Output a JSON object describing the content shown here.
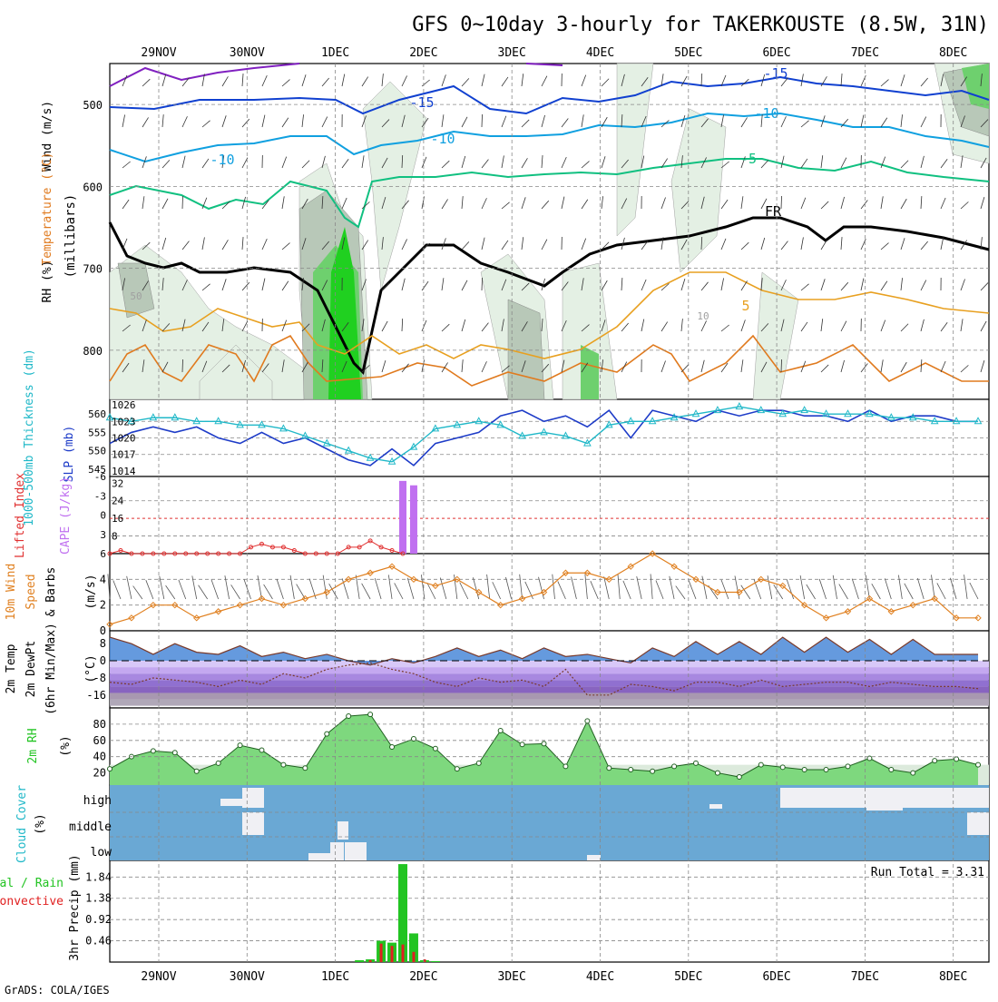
{
  "title": "GFS 0~10day 3-hourly for TAKERKOUSTE (8.5W, 31N)",
  "credit": "GrADS: COLA/IGES",
  "days": [
    "29NOV",
    "30NOV",
    "1DEC",
    "2DEC",
    "3DEC",
    "4DEC",
    "5DEC",
    "6DEC",
    "7DEC",
    "8DEC"
  ],
  "colors": {
    "temp_warm": "#e07a1e",
    "temp_yellow": "#e8a020",
    "freezing": "#000000",
    "temp_cold_green": "#10c080",
    "temp_cold_cyan": "#10a0e0",
    "temp_cold_blue": "#1040d0",
    "temp_cold_purple": "#8020c0",
    "rh_green": "#20d020",
    "slp": "#1e3cc8",
    "thickness": "#20b8c8",
    "cape": "#c070f0",
    "lifted_index": "#e03030",
    "wind10m": "#e08020",
    "cloud_sky": "#6aa8d4",
    "cloud_fill": "#f0f0f4",
    "precip_total": "#22c422",
    "precip_conv": "#e02020"
  },
  "panels": {
    "upper": {
      "label_wind": "Wind (m/s)",
      "label_temp": "Temperature (°C)",
      "label_rh": "RH (%)",
      "label_mb": "(millibars)",
      "yticks": [
        "500",
        "600",
        "700",
        "800"
      ],
      "contour_labels": [
        "-15",
        "-15",
        "-10",
        "-10",
        "-10",
        "-5",
        "FR",
        "5",
        "50",
        "10"
      ]
    },
    "slp": {
      "label_thickness": "1000-500mb Thickness (dm)",
      "label_slp": "SLP (mb)",
      "left_ticks": [
        "560",
        "555",
        "550",
        "545"
      ],
      "right_ticks": [
        "1026",
        "1023",
        "1020",
        "1017",
        "1014"
      ]
    },
    "cape": {
      "label_li": "Lifted Index",
      "label_cape": "CAPE (J/kg)",
      "left_ticks": [
        "-6",
        "-3",
        "0",
        "3",
        "6"
      ],
      "right_ticks": [
        "32",
        "24",
        "16",
        "8"
      ]
    },
    "wind10m": {
      "label_a": "10m Wind",
      "label_b": "Speed",
      "label_c": "& Barbs",
      "label_unit": "(m/s)",
      "yticks": [
        "4",
        "2",
        "0"
      ]
    },
    "temp2m": {
      "label_a": "2m Temp",
      "label_b": "2m DewPt",
      "label_c": "(6hr Min/Max)",
      "label_unit": "(°C)",
      "yticks": [
        "8",
        "0",
        "-8",
        "-16"
      ]
    },
    "rh2m": {
      "label_a": "2m RH",
      "label_unit": "(%)",
      "yticks": [
        "80",
        "60",
        "40",
        "20"
      ]
    },
    "cloud": {
      "label_a": "Cloud Cover",
      "label_unit": "(%)",
      "levels": [
        "high",
        "middle",
        "low"
      ]
    },
    "precip": {
      "label_a": "Total / Rain",
      "label_b": "Convective",
      "label_unit": "3hr Precip (mm)",
      "yticks": [
        "1.84",
        "1.38",
        "0.92",
        "0.46"
      ],
      "run_total": "Run Total = 3.31"
    }
  },
  "chart_data": [
    {
      "type": "line",
      "name": "SLP",
      "x_unit": "forecast hour (3-hourly)",
      "x": [
        0,
        6,
        12,
        18,
        24,
        30,
        36,
        42,
        48,
        54,
        60,
        66,
        72,
        78,
        84,
        90,
        96,
        102,
        108,
        114,
        120,
        126,
        132,
        138,
        144,
        150,
        156,
        162,
        168,
        174,
        180,
        186,
        192,
        198,
        204,
        210,
        216,
        222,
        228,
        234,
        240
      ],
      "values": [
        1019,
        1021,
        1022,
        1021,
        1022,
        1020,
        1019,
        1021,
        1019,
        1020,
        1018,
        1016,
        1015,
        1018,
        1015,
        1019,
        1020,
        1021,
        1024,
        1025,
        1023,
        1024,
        1022,
        1025,
        1020,
        1025,
        1024,
        1023,
        1025,
        1024,
        1025,
        1025,
        1024,
        1024,
        1023,
        1025,
        1023,
        1024,
        1024,
        1023,
        1023
      ],
      "ylim": [
        1014,
        1026
      ]
    },
    {
      "type": "line",
      "name": "1000-500mb Thickness",
      "x": [
        0,
        6,
        12,
        18,
        24,
        30,
        36,
        42,
        48,
        54,
        60,
        66,
        72,
        78,
        84,
        90,
        96,
        102,
        108,
        114,
        120,
        126,
        132,
        138,
        144,
        150,
        156,
        162,
        168,
        174,
        180,
        186,
        192,
        198,
        204,
        210,
        216,
        222,
        228,
        234,
        240
      ],
      "values": [
        559,
        558,
        559,
        559,
        558,
        558,
        557,
        557,
        556,
        554,
        552,
        550,
        548,
        547,
        551,
        556,
        557,
        558,
        557,
        554,
        555,
        554,
        552,
        557,
        558,
        558,
        559,
        560,
        561,
        562,
        561,
        560,
        561,
        560,
        560,
        560,
        559,
        559,
        558,
        558,
        558
      ],
      "ylim": [
        545,
        562
      ]
    },
    {
      "type": "bar",
      "name": "CAPE",
      "x": [
        81,
        84
      ],
      "values": [
        33,
        31
      ],
      "ylim": [
        0,
        35
      ]
    },
    {
      "type": "line",
      "name": "Lifted Index",
      "x": [
        0,
        3,
        6,
        9,
        12,
        15,
        18,
        21,
        24,
        27,
        30,
        33,
        36,
        39,
        42,
        45,
        48,
        51,
        54,
        57,
        60,
        63,
        66,
        69,
        72,
        75,
        78,
        81
      ],
      "values": [
        6,
        5.5,
        6,
        6,
        6,
        6,
        6,
        6,
        6,
        6,
        6,
        6,
        6,
        5,
        4.5,
        5,
        5,
        5.5,
        6,
        6,
        6,
        6,
        5,
        5,
        4,
        5,
        5.5,
        6
      ],
      "ylim": [
        -6,
        6
      ]
    },
    {
      "type": "line",
      "name": "10m Wind Speed",
      "x": [
        0,
        6,
        12,
        18,
        24,
        30,
        36,
        42,
        48,
        54,
        60,
        66,
        72,
        78,
        84,
        90,
        96,
        102,
        108,
        114,
        120,
        126,
        132,
        138,
        144,
        150,
        156,
        162,
        168,
        174,
        180,
        186,
        192,
        198,
        204,
        210,
        216,
        222,
        228,
        234,
        240
      ],
      "values": [
        0.5,
        1,
        2,
        2,
        1,
        1.5,
        2,
        2.5,
        2,
        2.5,
        3,
        4,
        4.5,
        5,
        4,
        3.5,
        4,
        3,
        2,
        2.5,
        3,
        4.5,
        4.5,
        4,
        5,
        6,
        5,
        4,
        3,
        3,
        4,
        3.5,
        2,
        1,
        1.5,
        2.5,
        1.5,
        2,
        2.5,
        1,
        1
      ],
      "ylim": [
        0,
        6
      ]
    },
    {
      "type": "line",
      "name": "2m Temp",
      "x": [
        0,
        6,
        12,
        18,
        24,
        30,
        36,
        42,
        48,
        54,
        60,
        66,
        72,
        78,
        84,
        90,
        96,
        102,
        108,
        114,
        120,
        126,
        132,
        138,
        144,
        150,
        156,
        162,
        168,
        174,
        180,
        186,
        192,
        198,
        204,
        210,
        216,
        222,
        228,
        234,
        240
      ],
      "values": [
        11,
        8,
        3,
        8,
        4,
        3,
        7,
        2,
        4,
        1,
        3,
        0,
        -2,
        1,
        -1,
        2,
        6,
        2,
        5,
        1,
        6,
        2,
        3,
        1,
        -1,
        6,
        2,
        9,
        3,
        9,
        3,
        11,
        4,
        11,
        4,
        10,
        3,
        10,
        3,
        3,
        3
      ],
      "ylim": [
        -20,
        12
      ]
    },
    {
      "type": "line",
      "name": "2m DewPt",
      "x": [
        0,
        6,
        12,
        18,
        24,
        30,
        36,
        42,
        48,
        54,
        60,
        66,
        72,
        78,
        84,
        90,
        96,
        102,
        108,
        114,
        120,
        126,
        132,
        138,
        144,
        150,
        156,
        162,
        168,
        174,
        180,
        186,
        192,
        198,
        204,
        210,
        216,
        222,
        228,
        234,
        240
      ],
      "values": [
        -10,
        -11,
        -8,
        -9,
        -10,
        -12,
        -9,
        -11,
        -6,
        -8,
        -4,
        -2,
        -1,
        -4,
        -6,
        -10,
        -12,
        -8,
        -10,
        -9,
        -12,
        -4,
        -16,
        -16,
        -11,
        -12,
        -14,
        -10,
        -10,
        -12,
        -9,
        -12,
        -11,
        -10,
        -10,
        -12,
        -10,
        -11,
        -12,
        -12,
        -13
      ],
      "ylim": [
        -20,
        12
      ]
    },
    {
      "type": "area",
      "name": "2m RH",
      "x": [
        0,
        6,
        12,
        18,
        24,
        30,
        36,
        42,
        48,
        54,
        60,
        66,
        72,
        78,
        84,
        90,
        96,
        102,
        108,
        114,
        120,
        126,
        132,
        138,
        144,
        150,
        156,
        162,
        168,
        174,
        180,
        186,
        192,
        198,
        204,
        210,
        216,
        222,
        228,
        234,
        240
      ],
      "values": [
        25,
        40,
        47,
        45,
        22,
        32,
        54,
        48,
        30,
        26,
        68,
        90,
        92,
        52,
        62,
        50,
        25,
        32,
        72,
        55,
        56,
        28,
        84,
        26,
        24,
        22,
        28,
        32,
        20,
        15,
        30,
        27,
        24,
        24,
        28,
        38,
        24,
        20,
        35,
        37,
        30
      ],
      "ylim": [
        0,
        100
      ]
    },
    {
      "type": "bar",
      "name": "3hr Precip Total",
      "x": [
        69,
        72,
        75,
        78,
        81,
        84,
        87,
        90,
        93
      ],
      "values": [
        0.04,
        0.06,
        0.46,
        0.42,
        2.12,
        0.62,
        0.04,
        0.02,
        0.0
      ],
      "ylim": [
        0,
        2.2
      ]
    },
    {
      "type": "bar",
      "name": "3hr Precip Convective",
      "x": [
        72,
        75,
        78,
        81,
        84,
        87
      ],
      "values": [
        0.04,
        0.4,
        0.35,
        0.38,
        0.22,
        0.06
      ],
      "ylim": [
        0,
        2.2
      ]
    }
  ]
}
